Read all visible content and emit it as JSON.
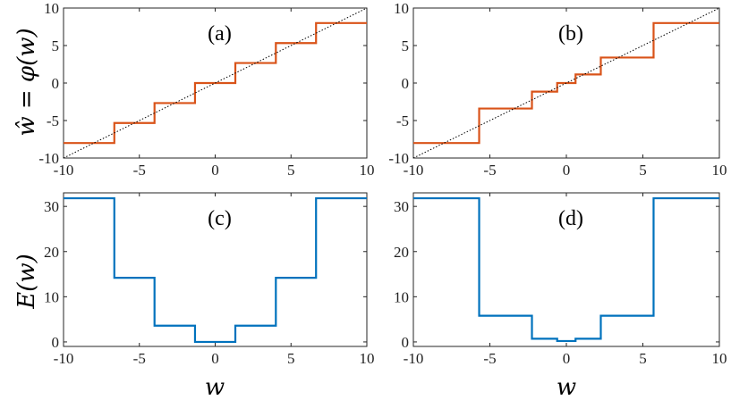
{
  "colors": {
    "quantizer": "#d95319",
    "error": "#0072bd",
    "identity": "#000000"
  },
  "axis_titles": {
    "left_top": "ŵ = φ(w)",
    "left_bottom": "E(w)",
    "bottom_left": "w",
    "bottom_right": "w"
  },
  "chart_data": [
    {
      "type": "line",
      "panel": "(a)",
      "xlim": [
        -10,
        10
      ],
      "ylim": [
        -10,
        10
      ],
      "xticks": [
        "-10",
        "-5",
        "0",
        "5",
        "10"
      ],
      "yticks": [
        "10",
        "5",
        "0",
        "-5",
        "-10"
      ],
      "ylabel": "ŵ = φ(w)",
      "grid": false,
      "series": [
        {
          "style": "step",
          "color": "#d95319",
          "x": [
            -10,
            -6.65,
            -6.65,
            -4.0,
            -4.0,
            -1.33,
            -1.33,
            1.33,
            1.33,
            4.0,
            4.0,
            6.65,
            6.65,
            10
          ],
          "y": [
            -8,
            -8,
            -5.33,
            -5.33,
            -2.67,
            -2.67,
            0,
            0,
            2.67,
            2.67,
            5.33,
            5.33,
            8,
            8
          ]
        },
        {
          "style": "dotted",
          "color": "#000000",
          "x": [
            -10,
            10
          ],
          "y": [
            -10,
            10
          ]
        }
      ]
    },
    {
      "type": "line",
      "panel": "(b)",
      "xlim": [
        -10,
        10
      ],
      "ylim": [
        -10,
        10
      ],
      "xticks": [
        "-10",
        "-5",
        "0",
        "5",
        "10"
      ],
      "yticks": [
        "10",
        "5",
        "0",
        "-5",
        "-10"
      ],
      "grid": false,
      "series": [
        {
          "style": "step",
          "color": "#d95319",
          "x": [
            -10,
            -5.7,
            -5.7,
            -2.25,
            -2.25,
            -0.6,
            -0.6,
            0.6,
            0.6,
            2.25,
            2.25,
            5.7,
            5.7,
            10
          ],
          "y": [
            -8,
            -8,
            -3.4,
            -3.4,
            -1.15,
            -1.15,
            0,
            0,
            1.15,
            1.15,
            3.4,
            3.4,
            8,
            8
          ]
        },
        {
          "style": "dotted",
          "color": "#000000",
          "x": [
            -10,
            10
          ],
          "y": [
            -10,
            10
          ]
        }
      ]
    },
    {
      "type": "line",
      "panel": "(c)",
      "xlim": [
        -10,
        10
      ],
      "ylim": [
        -1,
        33
      ],
      "xticks": [
        "-10",
        "-5",
        "0",
        "5",
        "10"
      ],
      "yticks": [
        "30",
        "20",
        "10",
        "0"
      ],
      "xlabel": "w",
      "ylabel": "E(w)",
      "grid": false,
      "series": [
        {
          "style": "step",
          "color": "#0072bd",
          "x": [
            -10,
            -6.65,
            -6.65,
            -4.0,
            -4.0,
            -1.33,
            -1.33,
            1.33,
            1.33,
            4.0,
            4.0,
            6.65,
            6.65,
            10
          ],
          "y": [
            31.8,
            31.8,
            14.2,
            14.2,
            3.6,
            3.6,
            0,
            0,
            3.6,
            3.6,
            14.2,
            14.2,
            31.8,
            31.8
          ]
        }
      ]
    },
    {
      "type": "line",
      "panel": "(d)",
      "xlim": [
        -10,
        10
      ],
      "ylim": [
        -1,
        33
      ],
      "xticks": [
        "-10",
        "-5",
        "0",
        "5",
        "10"
      ],
      "yticks": [
        "30",
        "20",
        "10",
        "0"
      ],
      "xlabel": "w",
      "grid": false,
      "series": [
        {
          "style": "step",
          "color": "#0072bd",
          "x": [
            -10,
            -5.7,
            -5.7,
            -2.25,
            -2.25,
            -0.6,
            -0.6,
            0.6,
            0.6,
            2.25,
            2.25,
            5.7,
            5.7,
            10
          ],
          "y": [
            31.8,
            31.8,
            5.8,
            5.8,
            0.7,
            0.7,
            0.2,
            0.2,
            0.7,
            0.7,
            5.8,
            5.8,
            31.8,
            31.8
          ]
        }
      ]
    }
  ]
}
